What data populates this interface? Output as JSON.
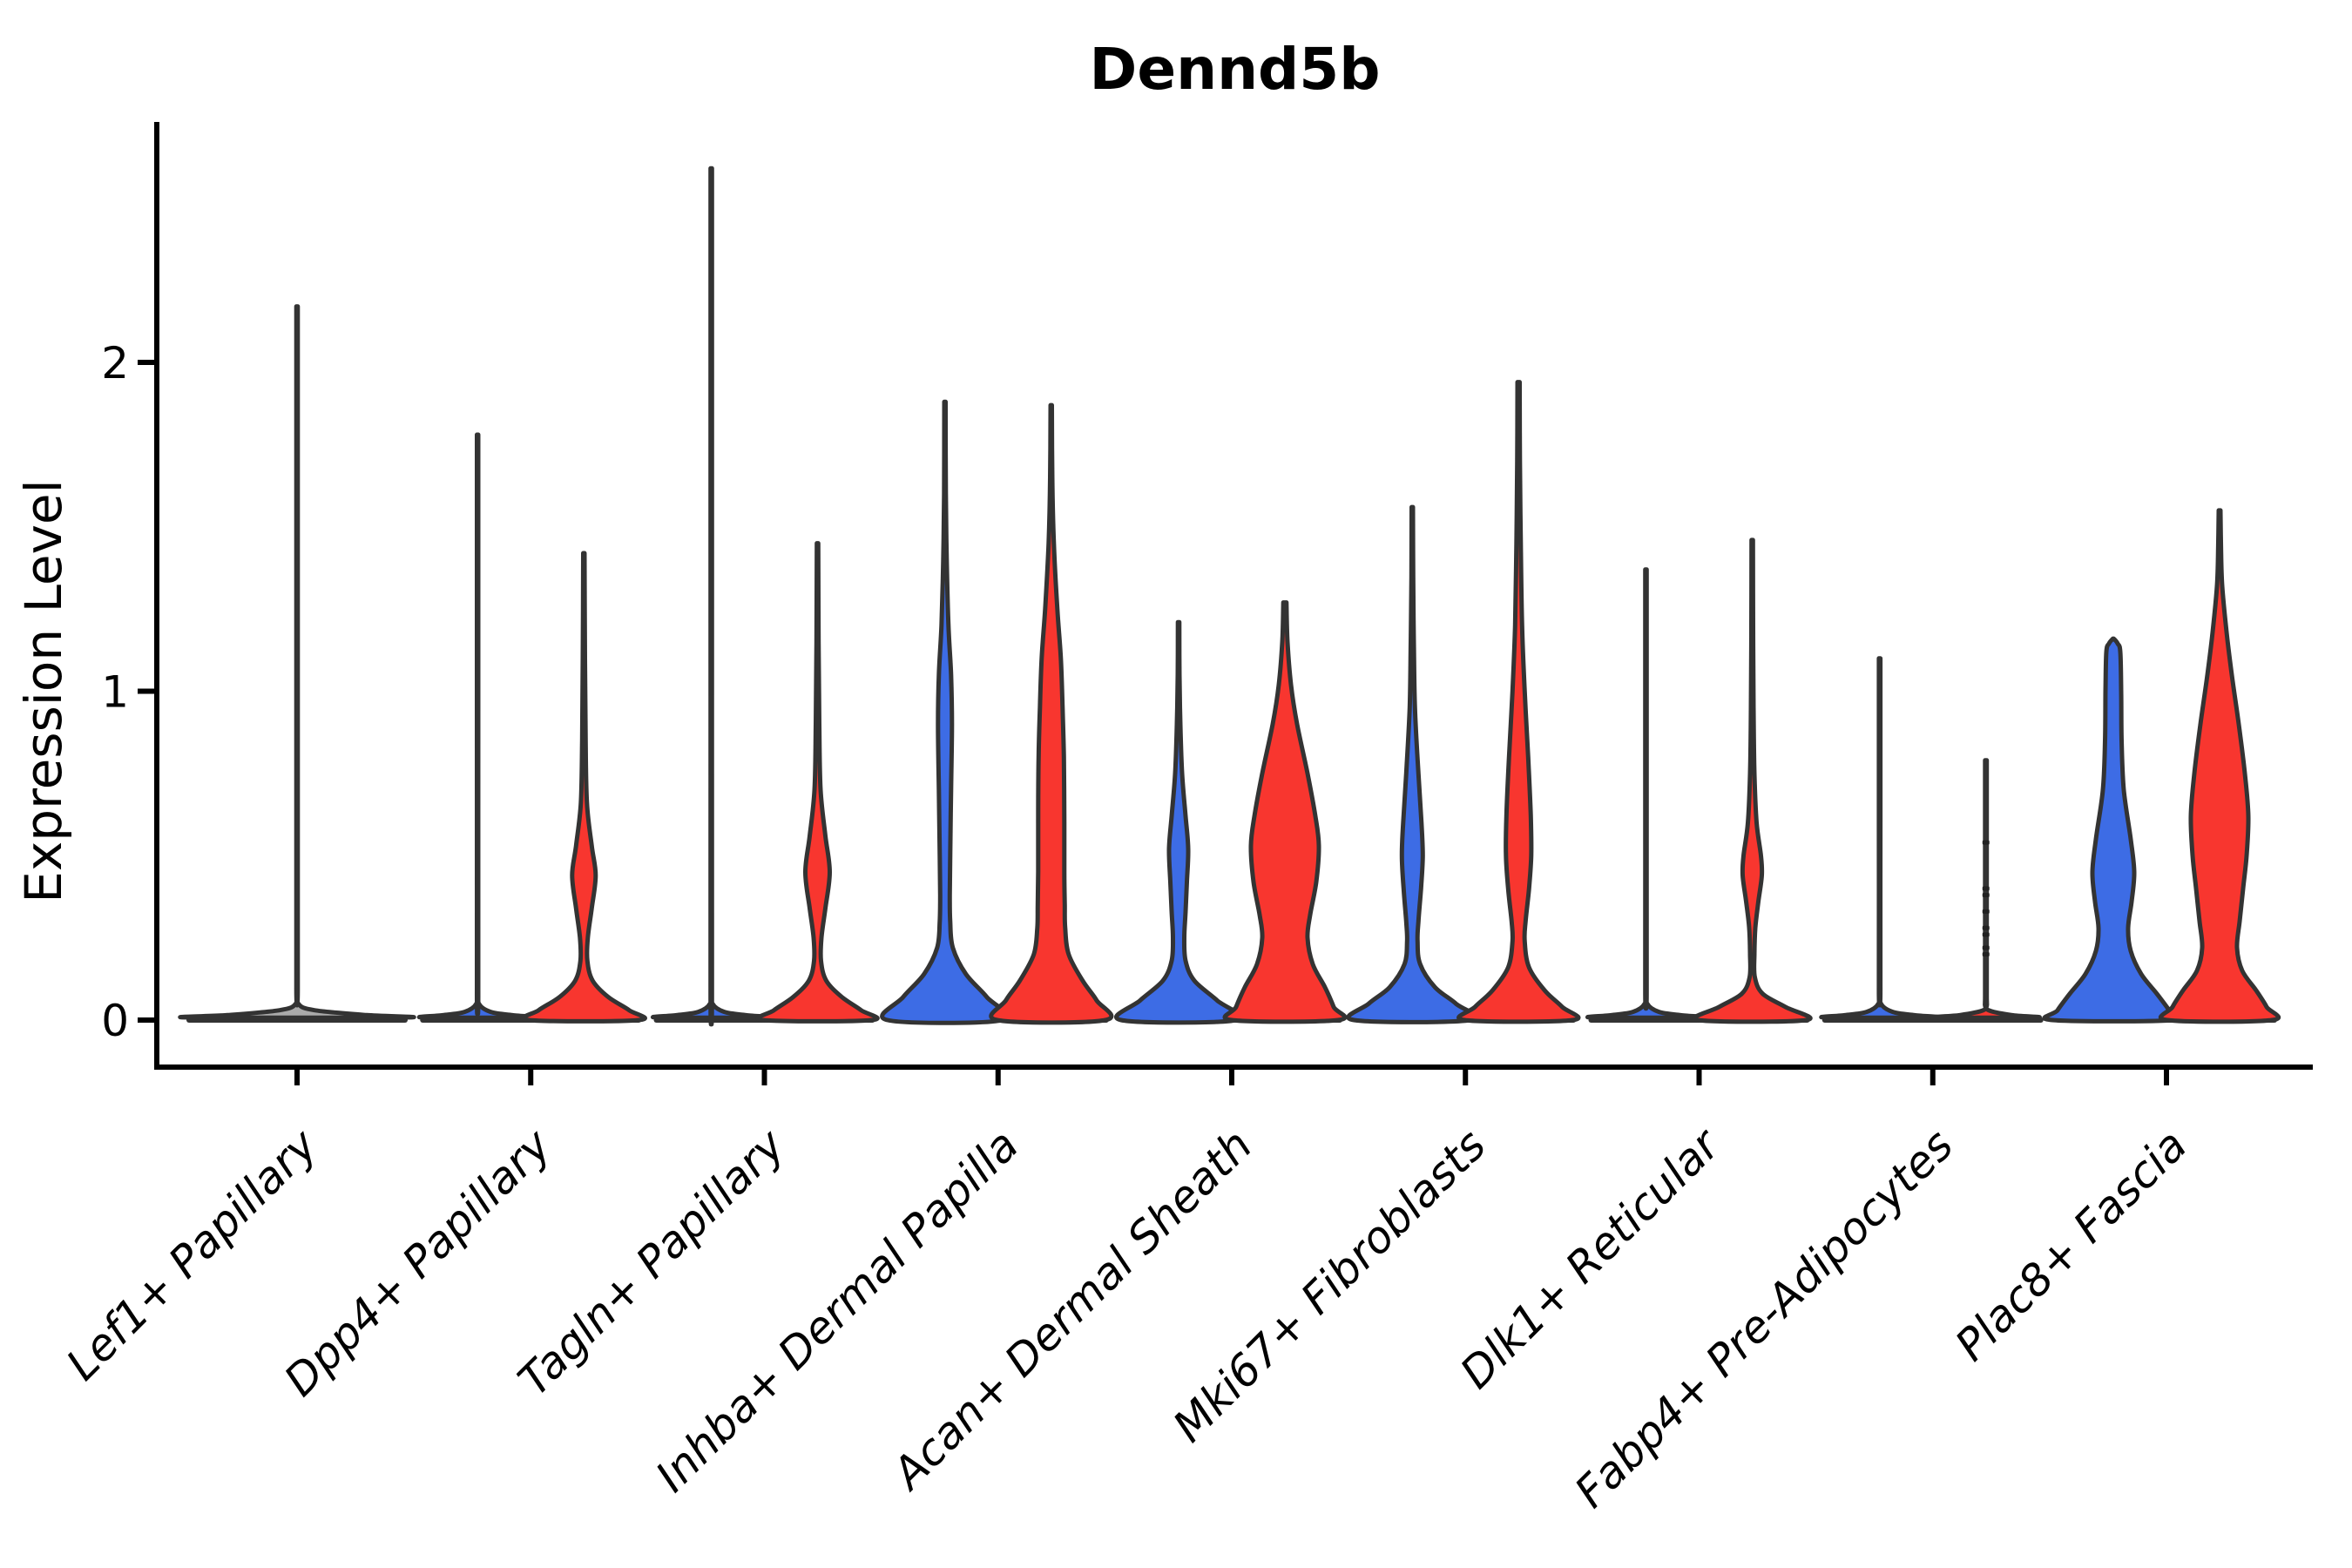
{
  "chart_data": {
    "type": "violin",
    "title": "Dennd5b",
    "ylabel": "Expression Level",
    "xlabel": "",
    "yticks": [
      0,
      1,
      2
    ],
    "ylim": [
      -0.14,
      2.73
    ],
    "grid": false,
    "legend": "none",
    "colors": {
      "blue": "#3d6ce5",
      "red": "#f8362f",
      "neutral": "#aaaaaa",
      "outline": "#333333",
      "axis": "#000000"
    },
    "categories": [
      "Lef1+ Papillary",
      "Dpp4+ Papillary",
      "Tagln+ Papillary",
      "Inhba+ Dermal Papilla",
      "Acan+ Dermal Sheath",
      "Mki67+ Fibroblasts",
      "Dlk1+ Reticular",
      "Fabp4+ Pre-Adipocytes",
      "Plac8+ Fascia"
    ],
    "groups": [
      {
        "category": "Lef1+ Papillary",
        "violins": [
          {
            "side": "center",
            "color_key": "neutral",
            "max": 2.17,
            "profile": [
              [
                2.17,
                0.8
              ],
              [
                1.5,
                0.8
              ],
              [
                0.6,
                0.8
              ],
              [
                0.1,
                0.8
              ],
              [
                0.05,
                1.5
              ],
              [
                0.03,
                20
              ],
              [
                0.015,
                80
              ],
              [
                0.008,
                124
              ]
            ]
          }
        ]
      },
      {
        "category": "Dpp4+ Papillary",
        "violins": [
          {
            "side": "left",
            "color_key": "blue",
            "max": 1.78,
            "profile": [
              [
                1.78,
                0.8
              ],
              [
                0.98,
                0.8
              ],
              [
                0.1,
                0.8
              ],
              [
                0.05,
                1.5
              ],
              [
                0.025,
                15
              ],
              [
                0.015,
                40
              ],
              [
                0.008,
                62
              ]
            ]
          },
          {
            "side": "right",
            "color_key": "red",
            "max": 1.42,
            "profile": [
              [
                1.42,
                0.8
              ],
              [
                1.1,
                1.2
              ],
              [
                0.85,
                2
              ],
              [
                0.66,
                3.5
              ],
              [
                0.53,
                9
              ],
              [
                0.44,
                13.5
              ],
              [
                0.34,
                9
              ],
              [
                0.25,
                4.5
              ],
              [
                0.18,
                4
              ],
              [
                0.12,
                10
              ],
              [
                0.07,
                28
              ],
              [
                0.03,
                52
              ],
              [
                0,
                63
              ]
            ]
          }
        ]
      },
      {
        "category": "Tagln+ Papillary",
        "violins": [
          {
            "side": "left",
            "color_key": "blue",
            "max": 2.59,
            "profile": [
              [
                2.59,
                0.8
              ],
              [
                1.42,
                0.8
              ],
              [
                0.1,
                0.8
              ],
              [
                0.05,
                1.5
              ],
              [
                0.025,
                15
              ],
              [
                0.015,
                40
              ],
              [
                0.008,
                62
              ]
            ]
          },
          {
            "side": "right",
            "color_key": "red",
            "max": 1.45,
            "profile": [
              [
                1.45,
                0.8
              ],
              [
                1.15,
                1.2
              ],
              [
                0.9,
                2
              ],
              [
                0.7,
                3.5
              ],
              [
                0.56,
                9
              ],
              [
                0.45,
                14
              ],
              [
                0.34,
                9
              ],
              [
                0.25,
                4.5
              ],
              [
                0.18,
                4
              ],
              [
                0.12,
                10
              ],
              [
                0.07,
                28
              ],
              [
                0.03,
                50
              ],
              [
                0,
                62
              ]
            ]
          }
        ]
      },
      {
        "category": "Inhba+ Dermal Papilla",
        "violins": [
          {
            "side": "left",
            "color_key": "blue",
            "max": 1.88,
            "profile": [
              [
                1.88,
                0.8
              ],
              [
                1.6,
                1
              ],
              [
                1.4,
                2
              ],
              [
                1.2,
                4
              ],
              [
                1.05,
                7
              ],
              [
                0.9,
                8
              ],
              [
                0.7,
                7
              ],
              [
                0.5,
                6
              ],
              [
                0.38,
                5.5
              ],
              [
                0.3,
                6
              ],
              [
                0.22,
                9
              ],
              [
                0.14,
                24
              ],
              [
                0.07,
                48
              ],
              [
                0,
                66
              ]
            ]
          },
          {
            "side": "right",
            "color_key": "red",
            "max": 1.87,
            "profile": [
              [
                1.87,
                0.8
              ],
              [
                1.65,
                1.2
              ],
              [
                1.45,
                3
              ],
              [
                1.25,
                7
              ],
              [
                1.1,
                11
              ],
              [
                0.95,
                13
              ],
              [
                0.8,
                14.5
              ],
              [
                0.6,
                15
              ],
              [
                0.45,
                15
              ],
              [
                0.35,
                15.5
              ],
              [
                0.28,
                16
              ],
              [
                0.2,
                20
              ],
              [
                0.12,
                36
              ],
              [
                0.06,
                52
              ],
              [
                0,
                62
              ]
            ]
          }
        ]
      },
      {
        "category": "Acan+ Dermal Sheath",
        "violins": [
          {
            "side": "left",
            "color_key": "blue",
            "max": 1.21,
            "profile": [
              [
                1.21,
                0.8
              ],
              [
                1.05,
                1
              ],
              [
                0.9,
                2
              ],
              [
                0.75,
                4
              ],
              [
                0.62,
                8
              ],
              [
                0.52,
                11
              ],
              [
                0.42,
                9.5
              ],
              [
                0.33,
                8
              ],
              [
                0.25,
                6.5
              ],
              [
                0.18,
                8
              ],
              [
                0.12,
                18
              ],
              [
                0.06,
                44
              ],
              [
                0,
                66
              ]
            ]
          },
          {
            "side": "right",
            "color_key": "red",
            "max": 1.27,
            "profile": [
              [
                1.27,
                1.8
              ],
              [
                1.15,
                3
              ],
              [
                1.02,
                7
              ],
              [
                0.9,
                14
              ],
              [
                0.75,
                26
              ],
              [
                0.62,
                35
              ],
              [
                0.53,
                39
              ],
              [
                0.42,
                36
              ],
              [
                0.32,
                29
              ],
              [
                0.25,
                26
              ],
              [
                0.17,
                32
              ],
              [
                0.1,
                46
              ],
              [
                0.04,
                56
              ],
              [
                0,
                61
              ]
            ]
          }
        ]
      },
      {
        "category": "Mki67+ Fibroblasts",
        "violins": [
          {
            "side": "left",
            "color_key": "blue",
            "max": 1.56,
            "profile": [
              [
                1.56,
                0.8
              ],
              [
                1.35,
                1
              ],
              [
                1.15,
                1.8
              ],
              [
                0.95,
                3
              ],
              [
                0.75,
                7
              ],
              [
                0.6,
                10.5
              ],
              [
                0.5,
                12
              ],
              [
                0.4,
                10
              ],
              [
                0.3,
                7
              ],
              [
                0.24,
                6
              ],
              [
                0.17,
                9
              ],
              [
                0.1,
                26
              ],
              [
                0.05,
                50
              ],
              [
                0,
                67
              ]
            ]
          },
          {
            "side": "right",
            "color_key": "red",
            "max": 1.94,
            "profile": [
              [
                1.94,
                1.2
              ],
              [
                1.7,
                1.6
              ],
              [
                1.45,
                2.5
              ],
              [
                1.2,
                4
              ],
              [
                1.0,
                7
              ],
              [
                0.8,
                11
              ],
              [
                0.62,
                14
              ],
              [
                0.5,
                14.5
              ],
              [
                0.4,
                12
              ],
              [
                0.3,
                8
              ],
              [
                0.24,
                7
              ],
              [
                0.16,
                12
              ],
              [
                0.09,
                30
              ],
              [
                0.04,
                50
              ],
              [
                0,
                62
              ]
            ]
          }
        ]
      },
      {
        "category": "Dlk1+ Reticular",
        "violins": [
          {
            "side": "left",
            "color_key": "blue",
            "max": 1.37,
            "profile": [
              [
                1.37,
                0.8
              ],
              [
                0.75,
                0.8
              ],
              [
                0.1,
                0.8
              ],
              [
                0.05,
                1.5
              ],
              [
                0.025,
                15
              ],
              [
                0.015,
                40
              ],
              [
                0.008,
                62
              ]
            ]
          },
          {
            "side": "right",
            "color_key": "red",
            "max": 1.46,
            "profile": [
              [
                1.46,
                0.8
              ],
              [
                1.2,
                1
              ],
              [
                0.95,
                1.5
              ],
              [
                0.75,
                2.5
              ],
              [
                0.6,
                5
              ],
              [
                0.5,
                10
              ],
              [
                0.44,
                11
              ],
              [
                0.36,
                7
              ],
              [
                0.28,
                3.5
              ],
              [
                0.2,
                2.5
              ],
              [
                0.13,
                3
              ],
              [
                0.08,
                12
              ],
              [
                0.04,
                38
              ],
              [
                0,
                62
              ]
            ]
          }
        ]
      },
      {
        "category": "Fabp4+ Pre-Adipocytes",
        "violins": [
          {
            "side": "left",
            "color_key": "blue",
            "max": 1.1,
            "profile": [
              [
                1.1,
                0.8
              ],
              [
                0.6,
                0.8
              ],
              [
                0.1,
                0.8
              ],
              [
                0.05,
                1.5
              ],
              [
                0.025,
                15
              ],
              [
                0.015,
                40
              ],
              [
                0.008,
                62
              ]
            ]
          },
          {
            "side": "right",
            "color_key": "red",
            "max": 0.79,
            "profile": [
              [
                0.79,
                0.9
              ],
              [
                0.55,
                0.9
              ],
              [
                0.3,
                0.9
              ],
              [
                0.1,
                0.9
              ],
              [
                0.05,
                1.2
              ],
              [
                0.03,
                3
              ],
              [
                0.015,
                30
              ],
              [
                0.008,
                58
              ]
            ],
            "points": [
              0.54,
              0.4,
              0.38,
              0.33,
              0.28,
              0.26,
              0.22,
              0.2
            ]
          }
        ]
      },
      {
        "category": "Plac8+ Fascia",
        "violins": [
          {
            "side": "left",
            "color_key": "blue",
            "max": 1.16,
            "profile": [
              [
                1.16,
                0.5
              ],
              [
                1.145,
                5
              ],
              [
                1.12,
                8
              ],
              [
                1.0,
                9
              ],
              [
                0.85,
                9.5
              ],
              [
                0.7,
                12
              ],
              [
                0.55,
                20
              ],
              [
                0.45,
                24
              ],
              [
                0.36,
                21
              ],
              [
                0.28,
                17
              ],
              [
                0.21,
                20
              ],
              [
                0.14,
                32
              ],
              [
                0.08,
                50
              ],
              [
                0.03,
                64
              ],
              [
                0,
                70
              ]
            ]
          },
          {
            "side": "right",
            "color_key": "red",
            "max": 1.55,
            "profile": [
              [
                1.55,
                1
              ],
              [
                1.44,
                1.6
              ],
              [
                1.32,
                3
              ],
              [
                1.18,
                8
              ],
              [
                1.05,
                14
              ],
              [
                0.9,
                22
              ],
              [
                0.75,
                29
              ],
              [
                0.62,
                33
              ],
              [
                0.5,
                31
              ],
              [
                0.4,
                27
              ],
              [
                0.3,
                23
              ],
              [
                0.22,
                20
              ],
              [
                0.15,
                26
              ],
              [
                0.09,
                42
              ],
              [
                0.04,
                54
              ],
              [
                0,
                60
              ]
            ]
          }
        ]
      }
    ]
  }
}
